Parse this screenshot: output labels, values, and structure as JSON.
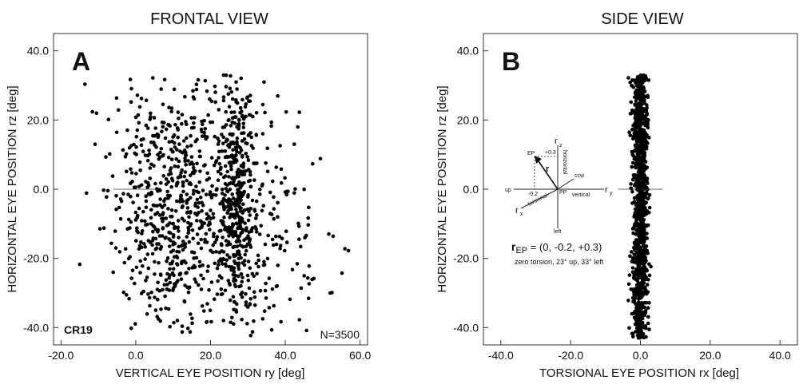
{
  "chart_data": [
    {
      "type": "scatter",
      "panel": "A",
      "title": "FRONTAL VIEW",
      "xlabel": "VERTICAL EYE POSITION ry [deg]",
      "ylabel": "HORIZONTAL EYE POSITION rz [deg]",
      "xlim": [
        -22,
        62
      ],
      "ylim": [
        -45,
        45
      ],
      "xticks": [
        -20,
        0,
        20,
        40,
        60
      ],
      "xtick_labels": [
        "-20.0",
        "0.0",
        "20.0",
        "40.0",
        "60.0"
      ],
      "yticks": [
        -40,
        -20,
        0,
        20,
        40
      ],
      "ytick_labels": [
        "-40.0",
        "-20.0",
        "0.0",
        "20.0",
        "40.0"
      ],
      "panel_label": "A",
      "subject_label": "CR19",
      "count_label": "N=3500",
      "point_count": 3500,
      "distribution": {
        "description": "dense cloud of eye positions spanning ry roughly -15 to 58 deg and rz roughly -43 to 33 deg, densest band near ry 24-28 deg",
        "clusters": [
          {
            "x_mean": 27,
            "x_sd": 2.5,
            "y_mean": 0,
            "y_sd": 16,
            "weight": 0.28
          },
          {
            "x_mean": 10,
            "x_sd": 8,
            "y_mean": -5,
            "y_sd": 18,
            "weight": 0.42
          },
          {
            "x_mean": 30,
            "x_sd": 10,
            "y_mean": -20,
            "y_sd": 14,
            "weight": 0.15
          },
          {
            "x_mean": 22,
            "x_sd": 14,
            "y_mean": 5,
            "y_sd": 22,
            "weight": 0.15
          }
        ]
      },
      "grid": false
    },
    {
      "type": "scatter",
      "panel": "B",
      "title": "SIDE VIEW",
      "xlabel": "TORSIONAL EYE POSITION rx [deg]",
      "ylabel": "HORIZONTAL EYE POSITION rz [deg]",
      "xlim": [
        -45,
        45
      ],
      "ylim": [
        -45,
        45
      ],
      "xticks": [
        -40,
        -20,
        0,
        20,
        40
      ],
      "xtick_labels": [
        "-40.0",
        "-20.0",
        "0.0",
        "20.0",
        "40.0"
      ],
      "yticks": [
        -40,
        -20,
        0,
        20,
        40
      ],
      "ytick_labels": [
        "-40.0",
        "-20.0",
        "0.0",
        "20.0",
        "40.0"
      ],
      "panel_label": "B",
      "point_count": 3500,
      "distribution": {
        "description": "narrow vertical band of points centered at rx 0 deg, rx spread about +/-3 deg, rz from about -43 to 33 deg",
        "x_mean": 0,
        "x_sd": 1.1,
        "y_min": -43,
        "y_max": 33
      },
      "grid": false
    }
  ],
  "inset": {
    "axis_z": "r",
    "axis_z_sub": "z",
    "axis_y": "r",
    "axis_y_sub": "y",
    "axis_x": "r",
    "axis_x_sub": "x",
    "vector_label": "r",
    "ep_label": "EP",
    "pp_label": "PP",
    "up_label": "up",
    "left_label": "left",
    "ccw_label": "ccw",
    "vertical_label": "vertical",
    "horizontal_label": "horizontal",
    "torsional_label": "torsional",
    "tick_y_value": "-0.2",
    "tick_z_value": "+0.3",
    "formula_main": "r",
    "formula_sub": "EP",
    "formula_rest": " = (0, -0.2, +0.3)",
    "caption": "zero torsion, 23° up, 33° left"
  },
  "colors": {
    "points": "#000000",
    "axes": "#333333",
    "background": "#ffffff"
  }
}
